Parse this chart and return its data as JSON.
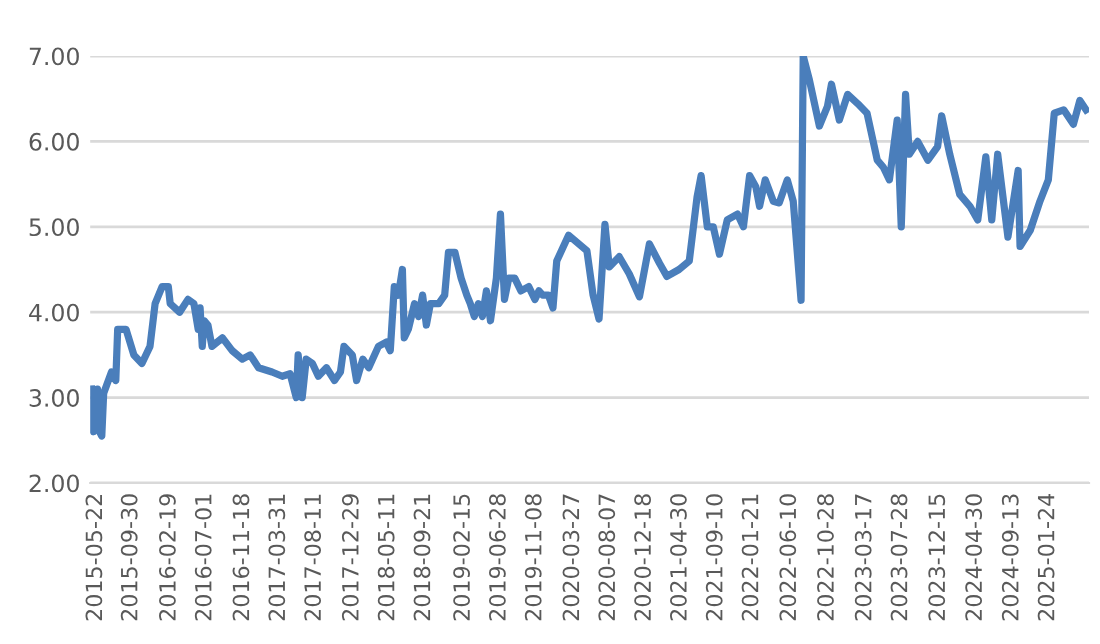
{
  "chart_data": {
    "type": "line",
    "x": [
      "2015-05-06",
      "2015-05-13",
      "2015-05-28",
      "2015-06-05",
      "2015-06-13",
      "2015-06-20",
      "2015-07-19",
      "2015-08-04",
      "2015-08-11",
      "2015-09-11",
      "2015-10-10",
      "2015-11-09",
      "2015-12-09",
      "2015-12-28",
      "2016-01-23",
      "2016-02-15",
      "2016-02-22",
      "2016-03-28",
      "2016-04-28",
      "2016-05-20",
      "2016-06-05",
      "2016-06-12",
      "2016-06-20",
      "2016-06-27",
      "2016-07-11",
      "2016-07-26",
      "2016-09-03",
      "2016-10-09",
      "2016-11-16",
      "2016-12-15",
      "2017-01-15",
      "2017-03-06",
      "2017-04-13",
      "2017-05-12",
      "2017-06-04",
      "2017-06-11",
      "2017-06-26",
      "2017-07-11",
      "2017-08-03",
      "2017-08-25",
      "2017-09-24",
      "2017-10-24",
      "2017-11-15",
      "2017-11-28",
      "2017-12-29",
      "2018-01-14",
      "2018-02-06",
      "2018-02-28",
      "2018-04-05",
      "2018-05-04",
      "2018-05-19",
      "2018-06-03",
      "2018-06-18",
      "2018-07-03",
      "2018-07-10",
      "2018-07-25",
      "2018-08-17",
      "2018-09-01",
      "2018-09-16",
      "2018-09-30",
      "2018-10-15",
      "2018-11-15",
      "2018-12-07",
      "2018-12-21",
      "2019-01-14",
      "2019-02-06",
      "2019-02-27",
      "2019-03-12",
      "2019-03-27",
      "2019-04-11",
      "2019-04-26",
      "2019-05-11",
      "2019-05-26",
      "2019-06-17",
      "2019-07-02",
      "2019-07-17",
      "2019-08-02",
      "2019-08-24",
      "2019-09-16",
      "2019-10-15",
      "2019-11-07",
      "2019-11-22",
      "2019-12-06",
      "2019-12-27",
      "2020-01-13",
      "2020-01-27",
      "2020-03-11",
      "2020-05-18",
      "2020-06-10",
      "2020-07-02",
      "2020-07-24",
      "2020-08-09",
      "2020-09-15",
      "2020-10-22",
      "2020-11-29",
      "2021-01-05",
      "2021-02-12",
      "2021-03-11",
      "2021-04-25",
      "2021-06-02",
      "2021-07-01",
      "2021-07-16",
      "2021-08-08",
      "2021-08-30",
      "2021-09-22",
      "2021-10-21",
      "2021-11-28",
      "2021-12-20",
      "2022-01-12",
      "2022-02-04",
      "2022-02-18",
      "2022-03-11",
      "2022-04-10",
      "2022-05-02",
      "2022-06-01",
      "2022-06-23",
      "2022-07-22",
      "2022-07-30",
      "2022-08-22",
      "2022-09-28",
      "2022-10-28",
      "2022-11-12",
      "2022-12-11",
      "2023-01-11",
      "2023-02-18",
      "2023-03-24",
      "2023-05-01",
      "2023-05-23",
      "2023-06-15",
      "2023-07-14",
      "2023-07-29",
      "2023-08-14",
      "2023-08-28",
      "2023-09-28",
      "2023-11-05",
      "2023-12-11",
      "2023-12-26",
      "2024-01-25",
      "2024-03-02",
      "2024-04-09",
      "2024-05-08",
      "2024-06-07",
      "2024-06-29",
      "2024-07-21",
      "2024-08-28",
      "2024-10-05",
      "2024-10-12",
      "2024-11-19",
      "2024-12-25",
      "2025-01-25",
      "2025-02-16",
      "2025-03-23",
      "2025-04-28",
      "2025-05-22",
      "2025-06-14"
    ],
    "series": [
      {
        "color": "#4a7ebb",
        "values": [
          3.1,
          2.6,
          3.1,
          2.6,
          2.55,
          3.05,
          3.3,
          3.2,
          3.8,
          3.8,
          3.5,
          3.4,
          3.6,
          4.1,
          4.3,
          4.3,
          4.1,
          4.0,
          4.15,
          4.1,
          3.8,
          4.05,
          3.6,
          3.9,
          3.85,
          3.6,
          3.7,
          3.55,
          3.45,
          3.5,
          3.35,
          3.3,
          3.25,
          3.28,
          3.0,
          3.5,
          3.0,
          3.45,
          3.4,
          3.25,
          3.35,
          3.2,
          3.3,
          3.6,
          3.5,
          3.2,
          3.45,
          3.35,
          3.6,
          3.65,
          3.55,
          4.3,
          4.2,
          4.5,
          3.7,
          3.8,
          4.1,
          3.95,
          4.2,
          3.85,
          4.1,
          4.1,
          4.2,
          4.7,
          4.7,
          4.4,
          4.2,
          4.1,
          3.95,
          4.1,
          3.95,
          4.25,
          3.9,
          4.4,
          5.15,
          4.15,
          4.4,
          4.4,
          4.25,
          4.3,
          4.15,
          4.25,
          4.2,
          4.2,
          4.05,
          4.6,
          4.9,
          4.72,
          4.2,
          3.92,
          5.03,
          4.53,
          4.65,
          4.45,
          4.18,
          4.8,
          4.57,
          4.42,
          4.5,
          4.6,
          5.35,
          5.6,
          5.0,
          5.0,
          4.68,
          5.08,
          5.15,
          5.0,
          5.6,
          5.47,
          5.24,
          5.55,
          5.3,
          5.28,
          5.55,
          5.3,
          4.14,
          7.0,
          6.72,
          6.18,
          6.41,
          6.67,
          6.25,
          6.55,
          6.44,
          6.33,
          5.78,
          5.7,
          5.55,
          6.25,
          5.0,
          6.55,
          5.85,
          6.0,
          5.78,
          5.94,
          6.3,
          5.85,
          5.38,
          5.24,
          5.08,
          5.82,
          5.08,
          5.85,
          4.88,
          5.66,
          4.77,
          4.96,
          5.3,
          5.55,
          6.33,
          6.37,
          6.2,
          6.48,
          6.37
        ]
      }
    ],
    "xlim": [
      "2015-05-01",
      "2025-06-25"
    ],
    "xticks": [
      "2015-05-22",
      "2015-09-30",
      "2016-02-19",
      "2016-07-01",
      "2016-11-18",
      "2017-03-31",
      "2017-08-11",
      "2017-12-29",
      "2018-05-11",
      "2018-09-21",
      "2019-02-15",
      "2019-06-28",
      "2019-11-08",
      "2020-03-27",
      "2020-08-07",
      "2020-12-18",
      "2021-04-30",
      "2021-09-10",
      "2022-01-21",
      "2022-06-10",
      "2022-10-28",
      "2023-03-17",
      "2023-07-28",
      "2023-12-15",
      "2024-04-30",
      "2024-09-13",
      "2025-01-24"
    ],
    "ylim": [
      2,
      7
    ],
    "yticks": [
      {
        "value": 2,
        "label": "2.00"
      },
      {
        "value": 3,
        "label": "3.00"
      },
      {
        "value": 4,
        "label": "4.00"
      },
      {
        "value": 5,
        "label": "5.00"
      },
      {
        "value": 6,
        "label": "6.00"
      },
      {
        "value": 7,
        "label": "7.00"
      }
    ],
    "grid": "y",
    "legend": false,
    "marker": "none",
    "line_style": "solid"
  }
}
